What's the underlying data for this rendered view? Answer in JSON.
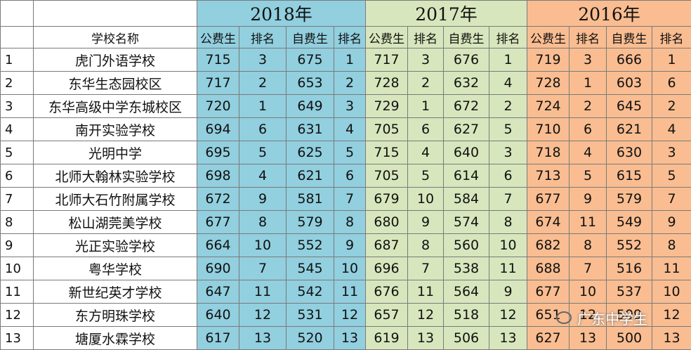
{
  "years": [
    "2018年",
    "2017年",
    "2016年"
  ],
  "column_headers": {
    "school": "学校名称",
    "groups": [
      [
        "公费生",
        "排名",
        "自费生",
        "排名"
      ],
      [
        "公费生",
        "排名",
        "自费生",
        "排名"
      ],
      [
        "公费生",
        "排名",
        "自费生",
        "排名"
      ]
    ]
  },
  "rows": [
    [
      1,
      "虎门外语学校",
      715,
      3,
      675,
      1,
      717,
      3,
      676,
      1,
      719,
      3,
      666,
      1
    ],
    [
      2,
      "东华生态园校区",
      717,
      2,
      653,
      2,
      728,
      2,
      632,
      4,
      728,
      1,
      603,
      6
    ],
    [
      3,
      "东华高级中学东城校区",
      720,
      1,
      649,
      3,
      729,
      1,
      672,
      2,
      724,
      2,
      645,
      2
    ],
    [
      4,
      "南开实验学校",
      694,
      6,
      631,
      4,
      705,
      6,
      627,
      5,
      710,
      6,
      621,
      4
    ],
    [
      5,
      "光明中学",
      695,
      5,
      625,
      5,
      715,
      4,
      640,
      3,
      718,
      4,
      630,
      3
    ],
    [
      6,
      "北师大翰林实验学校",
      698,
      4,
      621,
      6,
      705,
      5,
      614,
      6,
      713,
      5,
      615,
      5
    ],
    [
      7,
      "北师大石竹附属学校",
      672,
      9,
      581,
      7,
      679,
      10,
      584,
      7,
      677,
      9,
      579,
      7
    ],
    [
      8,
      "松山湖莞美学校",
      677,
      8,
      579,
      8,
      680,
      9,
      574,
      8,
      674,
      11,
      549,
      9
    ],
    [
      9,
      "光正实验学校",
      664,
      10,
      552,
      9,
      687,
      8,
      560,
      10,
      682,
      8,
      552,
      8
    ],
    [
      10,
      "粤华学校",
      690,
      7,
      545,
      10,
      696,
      7,
      538,
      11,
      688,
      7,
      516,
      11
    ],
    [
      11,
      "新世纪英才学校",
      647,
      11,
      542,
      11,
      676,
      11,
      564,
      9,
      677,
      10,
      537,
      10
    ],
    [
      12,
      "东方明珠学校",
      640,
      12,
      531,
      12,
      657,
      12,
      518,
      12,
      651,
      12,
      509,
      12
    ],
    [
      13,
      "塘厦水霖学校",
      617,
      13,
      520,
      13,
      619,
      13,
      506,
      13,
      627,
      13,
      500,
      13
    ]
  ],
  "watermark": "广东中学生"
}
